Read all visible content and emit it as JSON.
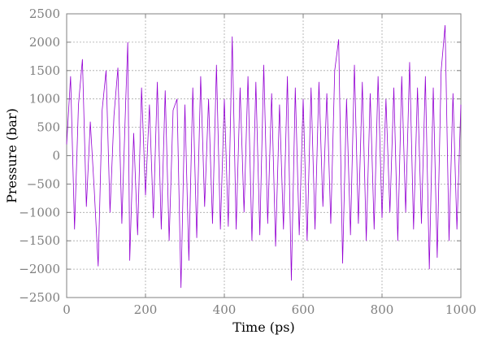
{
  "chart_data": {
    "type": "line",
    "title": "",
    "xlabel": "Time (ps)",
    "ylabel": "Pressure (bar)",
    "xlim": [
      0,
      1000
    ],
    "ylim": [
      -2500,
      2500
    ],
    "xticks": [
      0,
      200,
      400,
      600,
      800,
      1000
    ],
    "yticks": [
      -2500,
      -2000,
      -1500,
      -1000,
      -500,
      0,
      500,
      1000,
      1500,
      2000,
      2500
    ],
    "grid": true,
    "legend": "none",
    "color": "#9400d3",
    "series": [
      {
        "x": [
          0,
          10,
          20,
          30,
          40,
          50,
          60,
          70,
          80,
          90,
          100,
          110,
          120,
          130,
          140,
          150,
          155,
          160,
          170,
          180,
          190,
          200,
          210,
          220,
          230,
          240,
          250,
          260,
          270,
          280,
          290,
          300,
          310,
          320,
          330,
          340,
          350,
          360,
          370,
          380,
          390,
          400,
          410,
          420,
          430,
          440,
          450,
          460,
          470,
          480,
          490,
          500,
          510,
          520,
          530,
          540,
          550,
          560,
          570,
          580,
          590,
          600,
          610,
          620,
          630,
          640,
          650,
          660,
          670,
          680,
          690,
          700,
          710,
          720,
          730,
          740,
          750,
          760,
          770,
          780,
          790,
          800,
          810,
          820,
          830,
          840,
          850,
          860,
          870,
          880,
          890,
          900,
          910,
          920,
          930,
          940,
          950,
          960,
          970,
          980,
          990,
          1000
        ],
        "values": [
          200,
          1400,
          -1300,
          900,
          1700,
          -900,
          600,
          -600,
          -1950,
          800,
          1500,
          -1000,
          700,
          1550,
          -1200,
          1000,
          2000,
          -1850,
          400,
          -1400,
          1200,
          -700,
          900,
          -1100,
          1300,
          -1300,
          1150,
          -1500,
          800,
          1000,
          -2330,
          900,
          -1850,
          1200,
          -1450,
          1400,
          -900,
          1000,
          -1200,
          1600,
          -1300,
          1000,
          -1250,
          2100,
          -1300,
          1200,
          -1000,
          1400,
          -1500,
          1300,
          -1400,
          1600,
          -1200,
          1100,
          -1600,
          900,
          -1300,
          1400,
          -2200,
          1200,
          -1400,
          1000,
          -1500,
          1200,
          -1300,
          1300,
          -900,
          1100,
          -1200,
          1500,
          2050,
          -1900,
          1000,
          -1400,
          1600,
          -1200,
          1300,
          -1500,
          1100,
          -1300,
          1400,
          -1100,
          1000,
          -1000,
          1200,
          -1500,
          1400,
          -1000,
          1650,
          -1300,
          1200,
          -1200,
          1400,
          -2000,
          1200,
          -1800,
          1500,
          2300,
          -1500,
          1100,
          -1300,
          900
        ]
      }
    ]
  }
}
